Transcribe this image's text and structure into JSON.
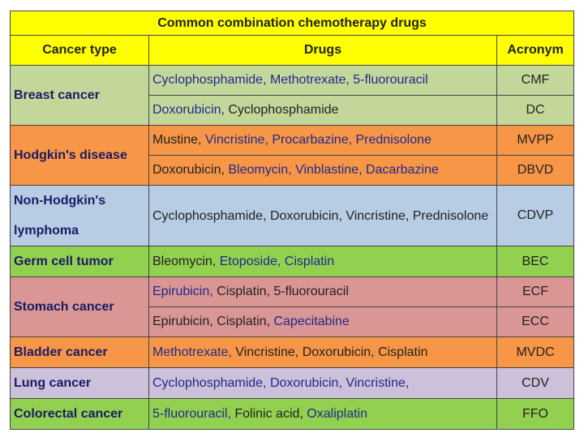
{
  "title": "Common combination chemotherapy drugs",
  "headers": [
    "Cancer type",
    "Drugs",
    "Acronym"
  ],
  "header_color": "#ffff00",
  "groups": [
    {
      "cancer": "Breast cancer",
      "color": "#c4d79b",
      "rows": [
        {
          "drugs": [
            {
              "text": "Cyclophosphamide, ",
              "color": "#1f2a8c"
            },
            {
              "text": "Methotrexate, ",
              "color": "#1f2a8c"
            },
            {
              "text": "5-fluorouracil",
              "color": "#1f2a8c"
            }
          ],
          "acronym": "CMF"
        },
        {
          "drugs": [
            {
              "text": "Doxorubicin, ",
              "color": "#1f2a8c"
            },
            {
              "text": "Cyclophosphamide",
              "color": "#222222"
            }
          ],
          "acronym": "DC"
        }
      ]
    },
    {
      "cancer": "Hodgkin's disease",
      "color": "#f79646",
      "rows": [
        {
          "drugs": [
            {
              "text": "Mustine, ",
              "color": "#222222"
            },
            {
              "text": "Vincristine, ",
              "color": "#1f2a8c"
            },
            {
              "text": "Procarbazine, ",
              "color": "#1f2a8c"
            },
            {
              "text": "Prednisolone",
              "color": "#1f2a8c"
            }
          ],
          "acronym": "MVPP"
        },
        {
          "drugs": [
            {
              "text": "Doxorubicin, ",
              "color": "#222222"
            },
            {
              "text": "Bleomycin, ",
              "color": "#1f2a8c"
            },
            {
              "text": "Vinblastine, ",
              "color": "#1f2a8c"
            },
            {
              "text": "Dacarbazine",
              "color": "#1f2a8c"
            }
          ],
          "acronym": "DBVD"
        }
      ]
    },
    {
      "cancer": "Non-Hodgkin's lymphoma",
      "color": "#b8cce4",
      "rows": [
        {
          "drugs": [
            {
              "text": "Cyclophosphamide, ",
              "color": "#222222"
            },
            {
              "text": "Doxorubicin, ",
              "color": "#222222"
            },
            {
              "text": "Vincristine, ",
              "color": "#222222"
            },
            {
              "text": "Prednisolone",
              "color": "#222222"
            }
          ],
          "acronym": "CDVP"
        }
      ]
    },
    {
      "cancer": "Germ cell tumor",
      "color": "#92d050",
      "rows": [
        {
          "drugs": [
            {
              "text": "Bleomycin, ",
              "color": "#222222"
            },
            {
              "text": "Etoposide, ",
              "color": "#1f2a8c"
            },
            {
              "text": "Cisplatin",
              "color": "#1f2a8c"
            }
          ],
          "acronym": "BEC"
        }
      ]
    },
    {
      "cancer": "Stomach cancer",
      "color": "#da9694",
      "rows": [
        {
          "drugs": [
            {
              "text": "Epirubicin, ",
              "color": "#1f2a8c"
            },
            {
              "text": "Cisplatin, ",
              "color": "#222222"
            },
            {
              "text": "5-fluorouracil",
              "color": "#222222"
            }
          ],
          "acronym": "ECF"
        },
        {
          "drugs": [
            {
              "text": "Epirubicin, ",
              "color": "#222222"
            },
            {
              "text": "Cisplatin, ",
              "color": "#222222"
            },
            {
              "text": "Capecitabine",
              "color": "#1f2a8c"
            }
          ],
          "acronym": "ECC"
        }
      ]
    },
    {
      "cancer": "Bladder cancer",
      "color": "#f79646",
      "rows": [
        {
          "drugs": [
            {
              "text": "Methotrexate, ",
              "color": "#1f2a8c"
            },
            {
              "text": "Vincristine, ",
              "color": "#222222"
            },
            {
              "text": "Doxorubicin, ",
              "color": "#222222"
            },
            {
              "text": "Cisplatin",
              "color": "#222222"
            }
          ],
          "acronym": "MVDC"
        }
      ]
    },
    {
      "cancer": "Lung cancer",
      "color": "#ccc0da",
      "rows": [
        {
          "drugs": [
            {
              "text": "Cyclophosphamide, ",
              "color": "#1f2a8c"
            },
            {
              "text": "Doxorubicin, ",
              "color": "#1f2a8c"
            },
            {
              "text": "Vincristine,",
              "color": "#1f2a8c"
            }
          ],
          "acronym": "CDV"
        }
      ]
    },
    {
      "cancer": "Colorectal cancer",
      "color": "#92d050",
      "rows": [
        {
          "drugs": [
            {
              "text": "5-fluorouracil, ",
              "color": "#1f2a8c"
            },
            {
              "text": "Folinic acid, ",
              "color": "#222222"
            },
            {
              "text": "Oxaliplatin",
              "color": "#1f2a8c"
            }
          ],
          "acronym": "FFO"
        }
      ]
    }
  ]
}
